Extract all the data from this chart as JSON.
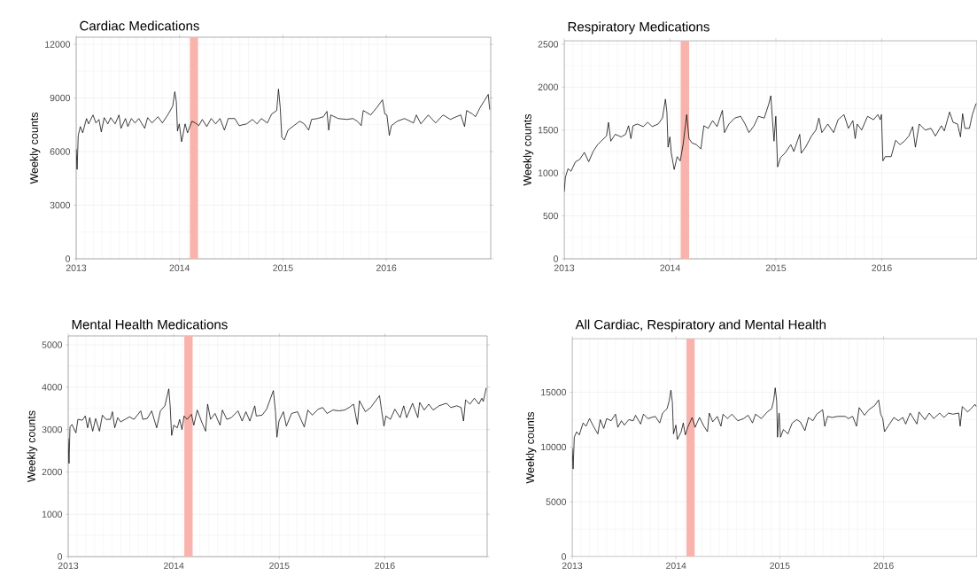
{
  "chart_data": [
    {
      "type": "line",
      "title": "Cardiac Medications",
      "ylabel": "Weekly counts",
      "xlim": [
        2013,
        2017.01
      ],
      "ylim": [
        0,
        12400
      ],
      "xticks": [
        2013,
        2014,
        2015,
        2016
      ],
      "yticks": [
        0,
        3000,
        6000,
        9000,
        12000
      ],
      "grid": true,
      "bands": [
        {
          "axis": "x",
          "from": 2014.1,
          "to": 2014.18,
          "color": "#f8b4ac"
        }
      ],
      "series": [
        {
          "color": "#000000",
          "x": [
            2013.0,
            2013.009,
            2013.02,
            2013.04,
            2013.063,
            2013.1,
            2013.12,
            2013.163,
            2013.191,
            2013.22,
            2013.243,
            2013.271,
            2013.306,
            2013.334,
            2013.377,
            2013.414,
            2013.434,
            2013.477,
            2013.5,
            2013.534,
            2013.569,
            2013.606,
            2013.663,
            2013.691,
            2013.734,
            2013.791,
            2013.834,
            2013.891,
            2013.934,
            2013.954,
            2013.969,
            2013.98,
            2013.997,
            2014.02,
            2014.054,
            2014.077,
            2014.12,
            2014.154,
            2014.186,
            2014.22,
            2014.263,
            2014.306,
            2014.349,
            2014.391,
            2014.434,
            2014.471,
            2014.534,
            2014.577,
            2014.649,
            2014.706,
            2014.749,
            2014.791,
            2014.849,
            2014.891,
            2014.94,
            2014.957,
            2014.974,
            2014.989,
            2015.014,
            2015.049,
            2015.106,
            2015.163,
            2015.206,
            2015.249,
            2015.277,
            2015.334,
            2015.391,
            2015.426,
            2015.443,
            2015.463,
            2015.534,
            2015.62,
            2015.677,
            2015.72,
            2015.757,
            2015.777,
            2015.849,
            2015.906,
            2015.963,
            2015.986,
            2016.006,
            2016.029,
            2016.049,
            2016.106,
            2016.177,
            2016.263,
            2016.291,
            2016.334,
            2016.406,
            2016.477,
            2016.549,
            2016.62,
            2016.677,
            2016.72,
            2016.757,
            2016.777,
            2016.834,
            2016.863,
            2016.906,
            2016.949,
            2016.986,
            2017.0
          ],
          "values": [
            6150,
            5000,
            6900,
            7400,
            7050,
            7850,
            7550,
            8050,
            7600,
            7800,
            7100,
            7900,
            7550,
            7900,
            7550,
            8050,
            7300,
            7850,
            7400,
            7850,
            7600,
            7850,
            7300,
            7900,
            7600,
            7950,
            7600,
            8100,
            8550,
            9350,
            8800,
            7150,
            7550,
            6550,
            7550,
            7050,
            7700,
            7600,
            7450,
            7800,
            7400,
            7850,
            7550,
            7850,
            7200,
            7850,
            7850,
            7450,
            7550,
            7800,
            7550,
            7850,
            7600,
            8100,
            8300,
            9500,
            8450,
            6800,
            6650,
            7200,
            7450,
            7700,
            7550,
            7200,
            7800,
            7850,
            7950,
            8250,
            7200,
            8050,
            7850,
            7800,
            7850,
            7700,
            7450,
            8300,
            8050,
            8450,
            8900,
            8100,
            8050,
            6900,
            7450,
            7700,
            7850,
            7600,
            8050,
            7550,
            8050,
            7600,
            8050,
            7800,
            7950,
            8050,
            7400,
            8300,
            8100,
            7950,
            8450,
            8850,
            9200,
            8350
          ]
        }
      ]
    },
    {
      "type": "line",
      "title": "Respiratory Medications",
      "ylabel": "Weekly counts",
      "xlim": [
        2013,
        2016.9
      ],
      "ylim": [
        0,
        2540
      ],
      "xticks": [
        2013,
        2014,
        2015,
        2016
      ],
      "yticks": [
        0,
        500,
        1000,
        1500,
        2000,
        2500
      ],
      "grid": true,
      "bands": [
        {
          "axis": "x",
          "from": 2014.1,
          "to": 2014.18,
          "color": "#f8b4ac"
        }
      ],
      "series": [
        {
          "color": "#000000",
          "x": [
            2013.0,
            2013.011,
            2013.036,
            2013.064,
            2013.106,
            2013.148,
            2013.19,
            2013.231,
            2013.273,
            2013.315,
            2013.357,
            2013.399,
            2013.418,
            2013.44,
            2013.482,
            2013.538,
            2013.58,
            2013.608,
            2013.63,
            2013.65,
            2013.691,
            2013.747,
            2013.789,
            2013.831,
            2013.887,
            2013.928,
            2013.956,
            2013.97,
            2013.981,
            2013.998,
            2014.012,
            2014.039,
            2014.067,
            2014.096,
            2014.123,
            2014.157,
            2014.179,
            2014.207,
            2014.249,
            2014.291,
            2014.319,
            2014.36,
            2014.402,
            2014.444,
            2014.494,
            2014.514,
            2014.556,
            2014.611,
            2014.667,
            2014.709,
            2014.745,
            2014.793,
            2014.834,
            2014.89,
            2014.932,
            2014.952,
            2014.968,
            2014.982,
            2014.999,
            2015.016,
            2015.044,
            2015.085,
            2015.141,
            2015.169,
            2015.225,
            2015.239,
            2015.28,
            2015.336,
            2015.378,
            2015.406,
            2015.434,
            2015.49,
            2015.545,
            2015.587,
            2015.643,
            2015.685,
            2015.727,
            2015.749,
            2015.768,
            2015.81,
            2015.866,
            2015.922,
            2015.963,
            2015.986,
            2015.997,
            2016.011,
            2016.033,
            2016.089,
            2016.131,
            2016.173,
            2016.214,
            2016.256,
            2016.292,
            2016.318,
            2016.354,
            2016.41,
            2016.465,
            2016.507,
            2016.563,
            2016.591,
            2016.641,
            2016.674,
            2016.716,
            2016.744,
            2016.764,
            2016.786,
            2016.828,
            2016.856,
            2016.892
          ],
          "values": [
            780,
            950,
            1050,
            1020,
            1130,
            1160,
            1240,
            1130,
            1250,
            1330,
            1380,
            1430,
            1590,
            1370,
            1450,
            1420,
            1450,
            1550,
            1400,
            1550,
            1570,
            1540,
            1590,
            1540,
            1570,
            1640,
            1860,
            1710,
            1300,
            1420,
            1230,
            1040,
            1190,
            1140,
            1330,
            1680,
            1400,
            1350,
            1330,
            1280,
            1550,
            1520,
            1610,
            1540,
            1730,
            1470,
            1570,
            1640,
            1660,
            1570,
            1470,
            1550,
            1660,
            1640,
            1800,
            1900,
            1610,
            1370,
            1660,
            1070,
            1180,
            1230,
            1330,
            1250,
            1450,
            1230,
            1300,
            1430,
            1500,
            1640,
            1470,
            1570,
            1470,
            1620,
            1680,
            1520,
            1610,
            1400,
            1570,
            1500,
            1660,
            1620,
            1680,
            1620,
            1680,
            1140,
            1190,
            1190,
            1380,
            1330,
            1370,
            1430,
            1540,
            1300,
            1570,
            1500,
            1520,
            1430,
            1550,
            1490,
            1710,
            1590,
            1570,
            1420,
            1690,
            1520,
            1520,
            1680,
            1810
          ]
        }
      ]
    },
    {
      "type": "line",
      "title": "Mental Health Medications",
      "ylabel": "Weekly counts",
      "xlim": [
        2013,
        2016.97
      ],
      "ylim": [
        0,
        5210
      ],
      "xticks": [
        2013,
        2014,
        2015,
        2016
      ],
      "yticks": [
        0,
        1000,
        2000,
        3000,
        4000,
        5000
      ],
      "grid": true,
      "bands": [
        {
          "axis": "x",
          "from": 2014.1,
          "to": 2014.18,
          "color": "#f8b4ac"
        }
      ],
      "series": [
        {
          "color": "#000000",
          "x": [
            2013.0,
            2013.008,
            2013.017,
            2013.036,
            2013.073,
            2013.092,
            2013.134,
            2013.162,
            2013.184,
            2013.204,
            2013.232,
            2013.26,
            2013.296,
            2013.324,
            2013.358,
            2013.399,
            2013.419,
            2013.441,
            2013.469,
            2013.497,
            2013.539,
            2013.581,
            2013.623,
            2013.687,
            2013.707,
            2013.749,
            2013.791,
            2013.838,
            2013.874,
            2013.916,
            2013.953,
            2013.966,
            2013.98,
            2014.0,
            2014.034,
            2014.056,
            2014.078,
            2014.098,
            2014.126,
            2014.168,
            2014.19,
            2014.223,
            2014.265,
            2014.302,
            2014.321,
            2014.349,
            2014.391,
            2014.439,
            2014.461,
            2014.503,
            2014.545,
            2014.609,
            2014.648,
            2014.684,
            2014.721,
            2014.768,
            2014.782,
            2014.838,
            2014.88,
            2014.944,
            2014.964,
            2014.978,
            2014.997,
            2015.039,
            2015.067,
            2015.117,
            2015.173,
            2015.237,
            2015.271,
            2015.313,
            2015.369,
            2015.411,
            2015.453,
            2015.508,
            2015.564,
            2015.62,
            2015.662,
            2015.704,
            2015.74,
            2015.76,
            2015.816,
            2015.866,
            2015.95,
            2015.969,
            2015.992,
            2016.011,
            2016.053,
            2016.095,
            2016.145,
            2016.179,
            2016.207,
            2016.263,
            2016.313,
            2016.33,
            2016.374,
            2016.416,
            2016.458,
            2016.514,
            2016.584,
            2016.626,
            2016.682,
            2016.723,
            2016.746,
            2016.765,
            2016.807,
            2016.849,
            2016.891,
            2016.919,
            2016.933,
            2016.961
          ],
          "values": [
            2790,
            2200,
            3060,
            3120,
            2920,
            3240,
            3220,
            3320,
            3040,
            3280,
            2960,
            3260,
            2960,
            3340,
            3240,
            3240,
            3420,
            3040,
            3280,
            3180,
            3240,
            3300,
            3240,
            3440,
            3240,
            3260,
            3440,
            3040,
            3440,
            3560,
            3960,
            3560,
            2860,
            3100,
            3040,
            3240,
            3000,
            3320,
            3240,
            3360,
            3100,
            3460,
            3180,
            2960,
            3600,
            3240,
            3380,
            3100,
            3460,
            3240,
            3280,
            3440,
            3200,
            3420,
            3200,
            3560,
            3320,
            3340,
            3480,
            3920,
            3420,
            2820,
            3200,
            3420,
            3080,
            3380,
            3420,
            3060,
            3460,
            3340,
            3480,
            3520,
            3380,
            3460,
            3440,
            3460,
            3520,
            3600,
            3120,
            3680,
            3420,
            3520,
            3800,
            3460,
            3080,
            3320,
            3240,
            3480,
            3280,
            3560,
            3280,
            3620,
            3280,
            3640,
            3460,
            3600,
            3460,
            3560,
            3620,
            3520,
            3560,
            3520,
            3200,
            3700,
            3600,
            3740,
            3600,
            3740,
            3660,
            3980
          ]
        }
      ]
    },
    {
      "type": "line",
      "title": "All Cardiac, Respiratory and Mental Health",
      "ylabel": "Weekly counts",
      "xlim": [
        2013,
        2016.9
      ],
      "ylim": [
        0,
        19900
      ],
      "xticks": [
        2013,
        2014,
        2015,
        2016
      ],
      "yticks": [
        0,
        5000,
        10000,
        15000
      ],
      "grid": true,
      "bands": [
        {
          "axis": "x",
          "from": 2014.1,
          "to": 2014.18,
          "color": "#f8b4ac"
        }
      ],
      "series": [
        {
          "color": "#000000",
          "x": [
            2013.0,
            2013.009,
            2013.02,
            2013.043,
            2013.068,
            2013.105,
            2013.133,
            2013.167,
            2013.204,
            2013.247,
            2013.27,
            2013.304,
            2013.332,
            2013.375,
            2013.417,
            2013.44,
            2013.474,
            2013.502,
            2013.545,
            2013.588,
            2013.61,
            2013.659,
            2013.687,
            2013.729,
            2013.8,
            2013.843,
            2013.871,
            2013.914,
            2013.934,
            2013.951,
            2013.965,
            2013.976,
            2013.999,
            2014.013,
            2014.05,
            2014.07,
            2014.09,
            2014.113,
            2014.155,
            2014.184,
            2014.226,
            2014.269,
            2014.303,
            2014.32,
            2014.354,
            2014.397,
            2014.433,
            2014.453,
            2014.496,
            2014.538,
            2014.595,
            2014.652,
            2014.695,
            2014.737,
            2014.766,
            2014.822,
            2014.879,
            2014.922,
            2014.942,
            2014.956,
            2014.97,
            2014.978,
            2014.993,
            2015.007,
            2015.035,
            2015.078,
            2015.12,
            2015.163,
            2015.197,
            2015.242,
            2015.276,
            2015.319,
            2015.356,
            2015.413,
            2015.433,
            2015.461,
            2015.504,
            2015.56,
            2015.631,
            2015.66,
            2015.702,
            2015.739,
            2015.765,
            2015.816,
            2015.858,
            2015.915,
            2015.952,
            2015.972,
            2015.992,
            2016.009,
            2016.043,
            2016.1,
            2016.142,
            2016.185,
            2016.213,
            2016.256,
            2016.321,
            2016.341,
            2016.398,
            2016.44,
            2016.483,
            2016.54,
            2016.582,
            2016.625,
            2016.667,
            2016.724,
            2016.738,
            2016.758,
            2016.809,
            2016.843,
            2016.88,
            2016.891
          ],
          "values": [
            9900,
            8000,
            10900,
            11400,
            11100,
            12200,
            11900,
            12600,
            11900,
            11200,
            12500,
            11700,
            12600,
            12400,
            13000,
            11800,
            12400,
            12000,
            12500,
            12400,
            12900,
            12100,
            13000,
            12600,
            12800,
            12200,
            13100,
            13500,
            14200,
            15200,
            14100,
            11200,
            12000,
            10700,
            11400,
            12200,
            11100,
            11800,
            12700,
            11800,
            12700,
            11900,
            11400,
            13100,
            12300,
            12800,
            11900,
            13000,
            12600,
            13000,
            12400,
            12600,
            12900,
            12200,
            13000,
            12600,
            13200,
            13500,
            14300,
            15400,
            14200,
            10900,
            13100,
            10900,
            11600,
            11200,
            12200,
            12500,
            12300,
            11500,
            12700,
            12400,
            13000,
            13400,
            11900,
            12800,
            12700,
            12800,
            12800,
            12600,
            12800,
            11900,
            13600,
            12900,
            13400,
            13800,
            14300,
            13000,
            12600,
            11400,
            11900,
            12700,
            12400,
            12700,
            12100,
            13100,
            12100,
            13200,
            12500,
            13100,
            12600,
            13100,
            12700,
            13100,
            13000,
            13100,
            11900,
            13700,
            13200,
            13500,
            13900,
            13700
          ]
        }
      ]
    }
  ]
}
